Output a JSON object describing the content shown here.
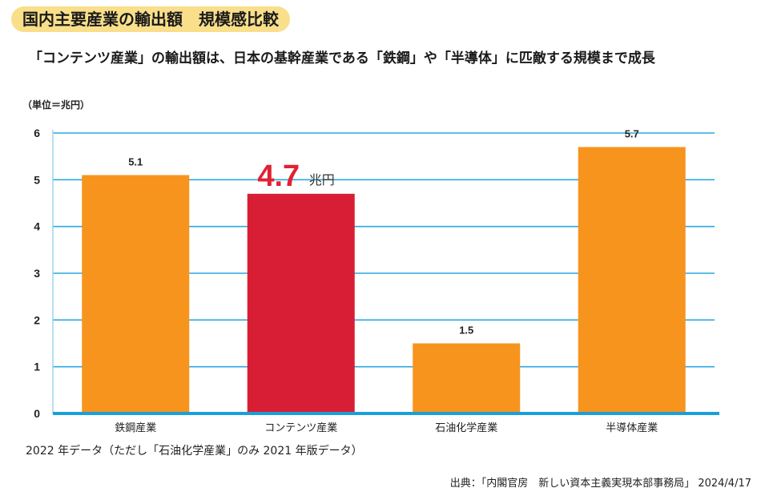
{
  "header": {
    "title": "国内主要産業の輸出額　規模感比較",
    "subtitle": "「コンテンツ産業」の輸出額は、日本の基幹産業である「鉄鋼」や「半導体」に匹敵する規模まで成長"
  },
  "chart_data": {
    "type": "bar",
    "unit_label": "（単位＝兆円）",
    "categories": [
      "鉄鋼産業",
      "コンテンツ産業",
      "石油化学産業",
      "半導体産業"
    ],
    "values": [
      5.1,
      4.7,
      1.5,
      5.7
    ],
    "value_labels": [
      "5.1",
      "4.7",
      "1.5",
      "5.7"
    ],
    "highlight": {
      "index": 1,
      "label": "4.7",
      "unit": "兆円",
      "color": "#e02233"
    },
    "ylim": [
      0,
      6
    ],
    "yticks": [
      "0",
      "1",
      "2",
      "3",
      "4",
      "5",
      "6"
    ],
    "grid": true,
    "colors": {
      "bar": "#f7941d",
      "highlight_bar": "#d81e34",
      "grid": "#2aa9e0",
      "axis": "#1a9fd9"
    }
  },
  "footer": {
    "note": "2022 年データ（ただし「石油化学産業」のみ 2021 年版データ）",
    "source": "出典：「内閣官房　新しい資本主義実現本部事務局」 2024/4/17"
  }
}
